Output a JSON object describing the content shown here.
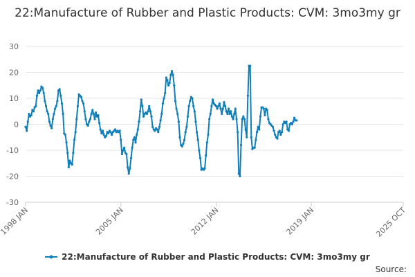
{
  "chart_data": {
    "type": "line",
    "title": "22:Manufacture of Rubber and Plastic Products: CVM: 3mo3my gr",
    "xlabel": "",
    "ylabel": "",
    "ylim": [
      -30,
      30
    ],
    "yticks": [
      -30,
      -20,
      -10,
      0,
      10,
      20,
      30
    ],
    "xticks": [
      "1998 JAN",
      "2005 JAN",
      "2012 JAN",
      "2019 JAN",
      "2025 OCT"
    ],
    "xrange": [
      "1998-01",
      "2025-10"
    ],
    "grid": "horizontal",
    "legend_position": "bottom",
    "series": [
      {
        "name": "22:Manufacture of Rubber and Plastic Products: CVM: 3mo3my gr",
        "color": "#0f7fb9",
        "points": [
          [
            "1998-01",
            -1
          ],
          [
            "1998-02",
            -2.5
          ],
          [
            "1998-03",
            1
          ],
          [
            "1998-04",
            4
          ],
          [
            "1998-05",
            3
          ],
          [
            "1998-06",
            3.5
          ],
          [
            "1998-07",
            5.5
          ],
          [
            "1998-08",
            5
          ],
          [
            "1998-09",
            6.5
          ],
          [
            "1998-10",
            7
          ],
          [
            "1998-11",
            11
          ],
          [
            "1998-12",
            13
          ],
          [
            "1999-01",
            12
          ],
          [
            "1999-02",
            13
          ],
          [
            "1999-03",
            14.5
          ],
          [
            "1999-04",
            14
          ],
          [
            "1999-05",
            12
          ],
          [
            "1999-06",
            9
          ],
          [
            "1999-07",
            7
          ],
          [
            "1999-08",
            5
          ],
          [
            "1999-09",
            4
          ],
          [
            "1999-10",
            1
          ],
          [
            "1999-11",
            -0.5
          ],
          [
            "1999-12",
            -1.5
          ],
          [
            "2000-01",
            2
          ],
          [
            "2000-02",
            4
          ],
          [
            "2000-03",
            6
          ],
          [
            "2000-04",
            7
          ],
          [
            "2000-05",
            9
          ],
          [
            "2000-06",
            13
          ],
          [
            "2000-07",
            13.5
          ],
          [
            "2000-08",
            11
          ],
          [
            "2000-09",
            8
          ],
          [
            "2000-10",
            4
          ],
          [
            "2000-11",
            -3.5
          ],
          [
            "2000-12",
            -4
          ],
          [
            "2001-01",
            -7
          ],
          [
            "2001-02",
            -11
          ],
          [
            "2001-03",
            -16.5
          ],
          [
            "2001-04",
            -14
          ],
          [
            "2001-05",
            -15
          ],
          [
            "2001-06",
            -15.5
          ],
          [
            "2001-07",
            -11
          ],
          [
            "2001-08",
            -6
          ],
          [
            "2001-09",
            -3
          ],
          [
            "2001-10",
            2
          ],
          [
            "2001-11",
            7
          ],
          [
            "2001-12",
            11.5
          ],
          [
            "2002-01",
            11
          ],
          [
            "2002-02",
            10.5
          ],
          [
            "2002-03",
            9
          ],
          [
            "2002-04",
            8
          ],
          [
            "2002-05",
            5
          ],
          [
            "2002-06",
            2
          ],
          [
            "2002-07",
            0
          ],
          [
            "2002-08",
            -0.5
          ],
          [
            "2002-09",
            1
          ],
          [
            "2002-10",
            2
          ],
          [
            "2002-11",
            4
          ],
          [
            "2002-12",
            5.5
          ],
          [
            "2003-01",
            4
          ],
          [
            "2003-02",
            2
          ],
          [
            "2003-03",
            4.5
          ],
          [
            "2003-04",
            3
          ],
          [
            "2003-05",
            3.5
          ],
          [
            "2003-06",
            0.5
          ],
          [
            "2003-07",
            -2
          ],
          [
            "2003-08",
            -3.5
          ],
          [
            "2003-09",
            -2.5
          ],
          [
            "2003-10",
            -4
          ],
          [
            "2003-11",
            -5
          ],
          [
            "2003-12",
            -4.5
          ],
          [
            "2004-01",
            -3
          ],
          [
            "2004-02",
            -3.5
          ],
          [
            "2004-03",
            -2.5
          ],
          [
            "2004-04",
            -3
          ],
          [
            "2004-05",
            -4
          ],
          [
            "2004-06",
            -3
          ],
          [
            "2004-07",
            -2.5
          ],
          [
            "2004-08",
            -2
          ],
          [
            "2004-09",
            -3
          ],
          [
            "2004-10",
            -2.5
          ],
          [
            "2004-11",
            -3
          ],
          [
            "2004-12",
            -2.5
          ],
          [
            "2005-01",
            -6
          ],
          [
            "2005-02",
            -11.5
          ],
          [
            "2005-03",
            -10
          ],
          [
            "2005-04",
            -9
          ],
          [
            "2005-05",
            -11
          ],
          [
            "2005-06",
            -11.5
          ],
          [
            "2005-07",
            -16.5
          ],
          [
            "2005-08",
            -19
          ],
          [
            "2005-09",
            -17
          ],
          [
            "2005-10",
            -13
          ],
          [
            "2005-11",
            -9
          ],
          [
            "2005-12",
            -6
          ],
          [
            "2006-01",
            -5
          ],
          [
            "2006-02",
            -7
          ],
          [
            "2006-03",
            -4
          ],
          [
            "2006-04",
            -2
          ],
          [
            "2006-05",
            1
          ],
          [
            "2006-06",
            5
          ],
          [
            "2006-07",
            9.5
          ],
          [
            "2006-08",
            7
          ],
          [
            "2006-09",
            3
          ],
          [
            "2006-10",
            4
          ],
          [
            "2006-11",
            4.5
          ],
          [
            "2006-12",
            4
          ],
          [
            "2007-01",
            5
          ],
          [
            "2007-02",
            7
          ],
          [
            "2007-03",
            5
          ],
          [
            "2007-04",
            3
          ],
          [
            "2007-05",
            -1
          ],
          [
            "2007-06",
            -2
          ],
          [
            "2007-07",
            -2.5
          ],
          [
            "2007-08",
            -1.5
          ],
          [
            "2007-09",
            -2
          ],
          [
            "2007-10",
            -3
          ],
          [
            "2007-11",
            -1
          ],
          [
            "2007-12",
            1.5
          ],
          [
            "2008-01",
            4
          ],
          [
            "2008-02",
            8
          ],
          [
            "2008-03",
            10
          ],
          [
            "2008-04",
            12
          ],
          [
            "2008-05",
            18
          ],
          [
            "2008-06",
            17
          ],
          [
            "2008-07",
            15
          ],
          [
            "2008-08",
            16
          ],
          [
            "2008-09",
            19
          ],
          [
            "2008-10",
            20.5
          ],
          [
            "2008-11",
            19
          ],
          [
            "2008-12",
            15
          ],
          [
            "2009-01",
            9
          ],
          [
            "2009-02",
            6
          ],
          [
            "2009-03",
            4
          ],
          [
            "2009-04",
            1
          ],
          [
            "2009-05",
            -5
          ],
          [
            "2009-06",
            -8
          ],
          [
            "2009-07",
            -8.5
          ],
          [
            "2009-08",
            -7.5
          ],
          [
            "2009-09",
            -6
          ],
          [
            "2009-10",
            -3
          ],
          [
            "2009-11",
            -1
          ],
          [
            "2009-12",
            3
          ],
          [
            "2010-01",
            7
          ],
          [
            "2010-02",
            9
          ],
          [
            "2010-03",
            10.5
          ],
          [
            "2010-04",
            10
          ],
          [
            "2010-05",
            7
          ],
          [
            "2010-06",
            5
          ],
          [
            "2010-07",
            1
          ],
          [
            "2010-08",
            -3
          ],
          [
            "2010-09",
            -6
          ],
          [
            "2010-10",
            -10
          ],
          [
            "2010-11",
            -13
          ],
          [
            "2010-12",
            -17.5
          ],
          [
            "2011-01",
            -17
          ],
          [
            "2011-02",
            -17.5
          ],
          [
            "2011-03",
            -17
          ],
          [
            "2011-04",
            -12
          ],
          [
            "2011-05",
            -7
          ],
          [
            "2011-06",
            -4
          ],
          [
            "2011-07",
            2
          ],
          [
            "2011-08",
            4
          ],
          [
            "2011-09",
            7
          ],
          [
            "2011-10",
            9.5
          ],
          [
            "2011-11",
            8
          ],
          [
            "2011-12",
            7.5
          ],
          [
            "2012-01",
            7
          ],
          [
            "2012-02",
            6
          ],
          [
            "2012-03",
            7
          ],
          [
            "2012-04",
            8
          ],
          [
            "2012-05",
            6
          ],
          [
            "2012-06",
            4
          ],
          [
            "2012-07",
            6
          ],
          [
            "2012-08",
            8.5
          ],
          [
            "2012-09",
            7
          ],
          [
            "2012-10",
            5
          ],
          [
            "2012-11",
            4
          ],
          [
            "2012-12",
            6
          ],
          [
            "2013-01",
            4
          ],
          [
            "2013-02",
            5
          ],
          [
            "2013-03",
            3
          ],
          [
            "2013-04",
            2
          ],
          [
            "2013-05",
            4
          ],
          [
            "2013-06",
            6
          ],
          [
            "2013-07",
            2
          ],
          [
            "2013-08",
            -3
          ],
          [
            "2013-09",
            -19
          ],
          [
            "2013-10",
            -20
          ],
          [
            "2013-11",
            -8
          ],
          [
            "2013-12",
            2
          ],
          [
            "2014-01",
            3
          ],
          [
            "2014-02",
            2
          ],
          [
            "2014-03",
            -2
          ],
          [
            "2014-04",
            -5
          ],
          [
            "2014-05",
            11
          ],
          [
            "2014-06",
            22.5
          ],
          [
            "2014-07",
            22.5
          ],
          [
            "2014-08",
            -5
          ],
          [
            "2014-09",
            -9.5
          ],
          [
            "2014-10",
            -9
          ],
          [
            "2014-11",
            -9
          ],
          [
            "2014-12",
            -6
          ],
          [
            "2015-01",
            -3
          ],
          [
            "2015-02",
            -1
          ],
          [
            "2015-03",
            -2
          ],
          [
            "2015-04",
            3
          ],
          [
            "2015-05",
            6.5
          ],
          [
            "2015-06",
            6.5
          ],
          [
            "2015-07",
            6
          ],
          [
            "2015-08",
            3.5
          ],
          [
            "2015-09",
            6
          ],
          [
            "2015-10",
            5.5
          ],
          [
            "2015-11",
            2
          ],
          [
            "2015-12",
            0.5
          ],
          [
            "2016-01",
            0
          ],
          [
            "2016-02",
            -0.5
          ],
          [
            "2016-03",
            -1
          ],
          [
            "2016-04",
            -2.5
          ],
          [
            "2016-05",
            -4
          ],
          [
            "2016-06",
            -5
          ],
          [
            "2016-07",
            -5.5
          ],
          [
            "2016-08",
            -3
          ],
          [
            "2016-09",
            -2.5
          ],
          [
            "2016-10",
            -4
          ],
          [
            "2016-11",
            -3
          ],
          [
            "2016-12",
            0
          ],
          [
            "2017-01",
            1
          ],
          [
            "2017-02",
            0.5
          ],
          [
            "2017-03",
            1
          ],
          [
            "2017-04",
            -2
          ],
          [
            "2017-05",
            -2.5
          ],
          [
            "2017-06",
            0
          ],
          [
            "2017-07",
            0.5
          ],
          [
            "2017-08",
            0
          ],
          [
            "2017-09",
            1
          ],
          [
            "2017-10",
            2.5
          ],
          [
            "2017-11",
            1.5
          ],
          [
            "2017-12",
            1.5
          ]
        ]
      }
    ]
  },
  "source_label": "Source:"
}
